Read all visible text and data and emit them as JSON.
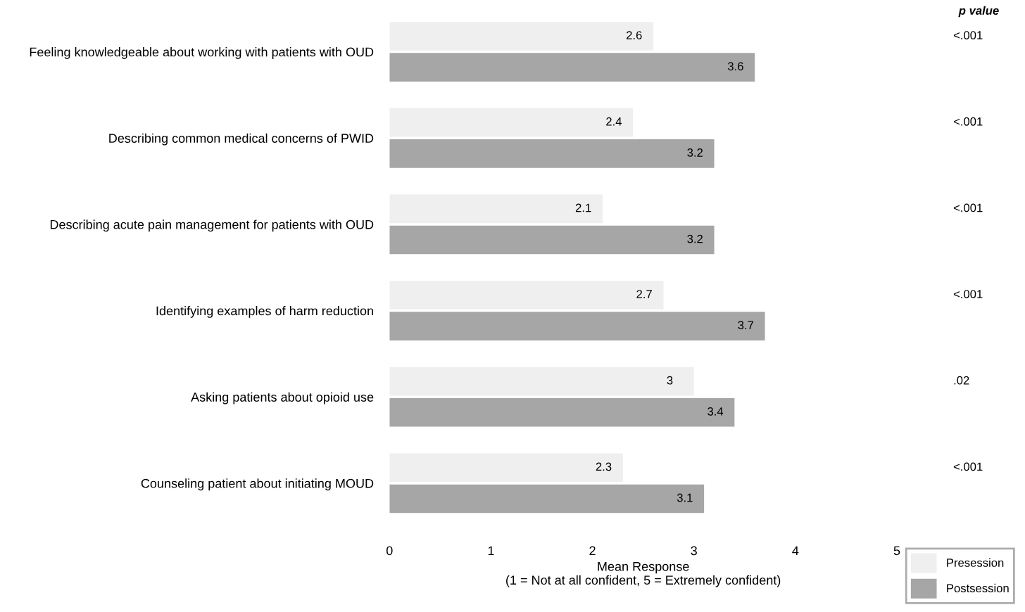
{
  "chart_data": {
    "type": "bar",
    "orientation": "horizontal",
    "categories": [
      "Feeling knowledgeable about working with patients with OUD",
      "Describing common medical concerns of PWID",
      "Describing acute pain management for patients with OUD",
      "Identifying examples of harm reduction",
      "Asking patients about opioid use",
      "Counseling patient about initiating MOUD"
    ],
    "series": [
      {
        "name": "Presession",
        "color": "#efefef",
        "values": [
          2.6,
          2.4,
          2.1,
          2.7,
          3,
          2.3
        ]
      },
      {
        "name": "Postsession",
        "color": "#a6a6a6",
        "values": [
          3.6,
          3.2,
          3.2,
          3.7,
          3.4,
          3.1
        ]
      }
    ],
    "data_labels": true,
    "xlim": [
      0,
      5
    ],
    "xticks": [
      0,
      1,
      2,
      3,
      4,
      5
    ],
    "xlabel": "Mean Response\n(1 = Not at all confident, 5 = Extremely confident)",
    "grid": false,
    "legend": "bottom right",
    "annotations": [
      "p value",
      "<.001",
      "<.001",
      "<.001",
      "<.001",
      ".02",
      "<.001"
    ]
  }
}
